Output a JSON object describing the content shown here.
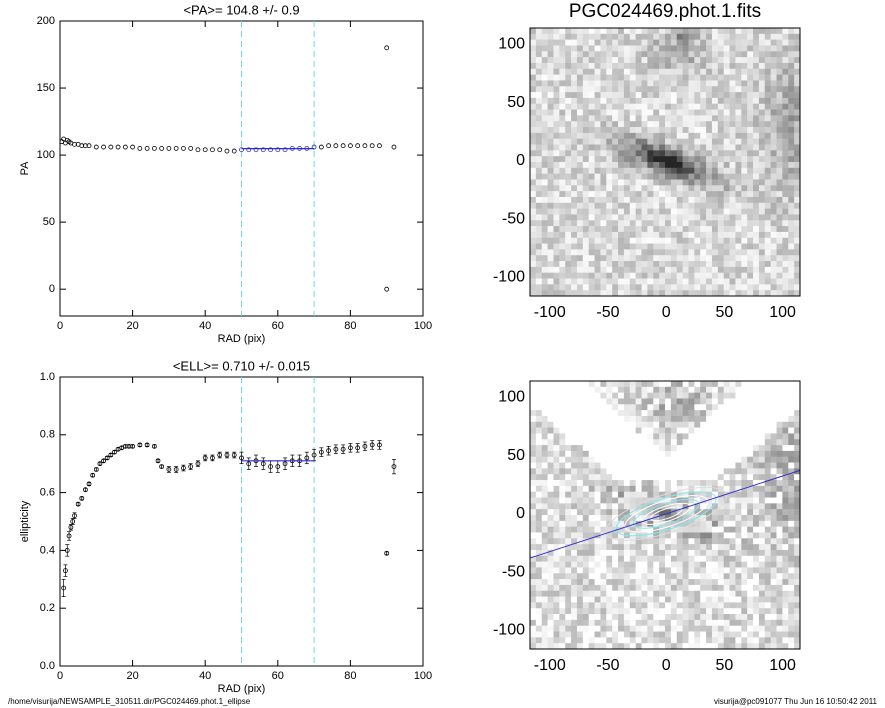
{
  "chart_data": [
    {
      "type": "scatter",
      "title": "<PA>= 104.8 +/-   0.9",
      "x_label": "RAD (pix)",
      "y_label": "PA",
      "x": [
        0.5,
        1,
        1.5,
        2,
        2.5,
        3,
        4,
        5,
        6,
        7,
        8,
        10,
        12,
        14,
        16,
        18,
        20,
        22,
        24,
        26,
        28,
        30,
        32,
        34,
        36,
        38,
        40,
        42,
        44,
        46,
        48,
        50,
        52,
        54,
        56,
        58,
        60,
        62,
        64,
        66,
        68,
        70,
        72,
        74,
        76,
        78,
        80,
        82,
        84,
        86,
        88,
        90,
        90,
        92
      ],
      "values": [
        110,
        112,
        109,
        111,
        110,
        109,
        108,
        108,
        107,
        107,
        107,
        106,
        106,
        106,
        106,
        106,
        106,
        105,
        105,
        105,
        105,
        105,
        105,
        105,
        105,
        104,
        104,
        104,
        104,
        103,
        103,
        104,
        104,
        104,
        104,
        104,
        104,
        104,
        105,
        105,
        105,
        106,
        106,
        107,
        107,
        107,
        107,
        107,
        107,
        107,
        107,
        180,
        0,
        106
      ],
      "color": "#000000",
      "fit_color": "#2b2bd0",
      "fit_line": {
        "x": [
          50,
          70
        ],
        "values": [
          104.8,
          104.8
        ]
      },
      "vlines": [
        50,
        70
      ],
      "vline_color": "#6ad8e0",
      "xlim": [
        0,
        100
      ],
      "xticks": [
        0,
        20,
        40,
        60,
        80,
        100
      ],
      "ylim": [
        -20,
        200
      ],
      "yticks": [
        0,
        50,
        100,
        150,
        200
      ]
    },
    {
      "type": "scatter",
      "title": "<ELL>= 0.710 +/-  0.015",
      "x_label": "RAD (pix)",
      "y_label": "ellipticity",
      "x": [
        1,
        1.5,
        2,
        2.5,
        3,
        3.5,
        4,
        5,
        6,
        7,
        8,
        9,
        10,
        11,
        12,
        13,
        14,
        15,
        16,
        17,
        18,
        19,
        20,
        22,
        24,
        26,
        27,
        28,
        30,
        32,
        34,
        36,
        38,
        40,
        42,
        44,
        46,
        48,
        50,
        52,
        54,
        56,
        58,
        60,
        62,
        64,
        66,
        68,
        70,
        72,
        74,
        76,
        78,
        80,
        82,
        84,
        86,
        88,
        90,
        92
      ],
      "values": [
        0.27,
        0.33,
        0.4,
        0.45,
        0.48,
        0.5,
        0.52,
        0.56,
        0.58,
        0.61,
        0.63,
        0.66,
        0.68,
        0.7,
        0.71,
        0.72,
        0.73,
        0.74,
        0.75,
        0.755,
        0.76,
        0.76,
        0.76,
        0.765,
        0.765,
        0.76,
        0.71,
        0.69,
        0.68,
        0.68,
        0.685,
        0.69,
        0.7,
        0.72,
        0.72,
        0.73,
        0.73,
        0.73,
        0.72,
        0.7,
        0.71,
        0.7,
        0.69,
        0.69,
        0.7,
        0.71,
        0.71,
        0.72,
        0.73,
        0.74,
        0.745,
        0.75,
        0.75,
        0.755,
        0.755,
        0.76,
        0.765,
        0.765,
        0.39,
        0.69
      ],
      "errors": [
        0.03,
        0.02,
        0.02,
        0.015,
        0.01,
        0.01,
        0.01,
        0.005,
        0.005,
        0.005,
        0.005,
        0.005,
        0.005,
        0.005,
        0.005,
        0.005,
        0.005,
        0.005,
        0.005,
        0.005,
        0.005,
        0.005,
        0.005,
        0.005,
        0.005,
        0.005,
        0.005,
        0.005,
        0.01,
        0.01,
        0.01,
        0.01,
        0.01,
        0.01,
        0.01,
        0.01,
        0.01,
        0.01,
        0.02,
        0.02,
        0.02,
        0.02,
        0.02,
        0.02,
        0.02,
        0.02,
        0.02,
        0.02,
        0.02,
        0.015,
        0.015,
        0.015,
        0.015,
        0.015,
        0.015,
        0.015,
        0.015,
        0.015,
        0.005,
        0.025
      ],
      "color": "#000000",
      "fit_color": "#2b2bd0",
      "fit_line": {
        "x": [
          50,
          70
        ],
        "values": [
          0.71,
          0.71
        ]
      },
      "vlines": [
        50,
        70
      ],
      "vline_color": "#6ad8e0",
      "xlim": [
        0,
        100
      ],
      "xticks": [
        0,
        20,
        40,
        60,
        80,
        100
      ],
      "ylim": [
        0,
        1
      ],
      "yticks": [
        {
          "value": 0,
          "label": "0.0"
        },
        0.2,
        0.4,
        0.6,
        0.8,
        {
          "value": 1,
          "label": "1.0"
        }
      ]
    },
    {
      "type": "image",
      "title": "PGC024469.phot.1.fits",
      "xlim": [
        -117,
        115
      ],
      "xticks": [
        -100,
        -50,
        0,
        50,
        100
      ],
      "ylim": [
        -116,
        114
      ],
      "yticks": [
        -100,
        -50,
        0,
        50,
        100
      ]
    },
    {
      "type": "image",
      "xlim": [
        -117,
        115
      ],
      "xticks": [
        -100,
        -50,
        0,
        50,
        100
      ],
      "ylim": [
        -116,
        114
      ],
      "yticks": [
        -100,
        -50,
        0,
        50,
        100
      ]
    }
  ],
  "footer": {
    "left": "/home/visurija/NEWSAMPLE_310511.dir/PGC024469.phot.1_ellipse",
    "right": "visurija@pc091077  Thu Jun 16 10:50:42 2011"
  }
}
